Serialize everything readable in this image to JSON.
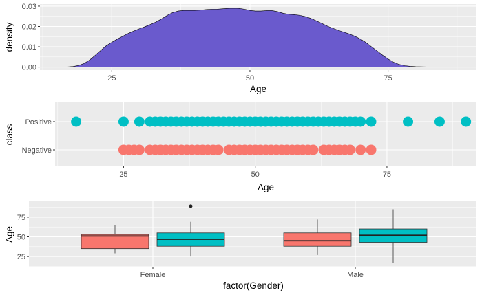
{
  "colors": {
    "panel_bg": "#ebebeb",
    "grid_major": "#ffffff",
    "density_fill": "#6a5acd",
    "negative": "#f8766d",
    "positive": "#00bfc4"
  },
  "chart_data": [
    {
      "type": "area",
      "xlabel": "Age",
      "ylabel": "density",
      "xlim": [
        12,
        91
      ],
      "ylim": [
        -0.0015,
        0.031
      ],
      "x_ticks": [
        25,
        50,
        75
      ],
      "y_ticks": [
        "0.00",
        "0.01",
        "0.02",
        "0.03"
      ],
      "x": [
        16,
        17,
        18,
        19,
        20,
        21,
        22,
        23,
        24,
        25,
        26,
        27,
        28,
        29,
        30,
        31,
        32,
        33,
        34,
        35,
        36,
        37,
        38,
        39,
        40,
        41,
        42,
        43,
        44,
        45,
        46,
        47,
        48,
        49,
        50,
        51,
        52,
        53,
        54,
        55,
        56,
        57,
        58,
        59,
        60,
        61,
        62,
        63,
        64,
        65,
        66,
        67,
        68,
        69,
        70,
        71,
        72,
        73,
        74,
        75,
        76,
        77,
        78,
        79,
        80,
        82,
        84,
        86,
        88,
        90
      ],
      "y": [
        0.0,
        0.0001,
        0.0003,
        0.0008,
        0.0018,
        0.0035,
        0.0058,
        0.0082,
        0.0105,
        0.0122,
        0.0138,
        0.0152,
        0.0166,
        0.0178,
        0.0189,
        0.0199,
        0.021,
        0.0222,
        0.0237,
        0.0254,
        0.0268,
        0.0276,
        0.0279,
        0.0279,
        0.0279,
        0.028,
        0.0283,
        0.0285,
        0.0285,
        0.0287,
        0.0289,
        0.029,
        0.0289,
        0.0285,
        0.0279,
        0.0276,
        0.0276,
        0.0278,
        0.0278,
        0.0273,
        0.0265,
        0.026,
        0.0258,
        0.0255,
        0.0249,
        0.024,
        0.0228,
        0.0215,
        0.0202,
        0.0191,
        0.0181,
        0.0172,
        0.0163,
        0.0152,
        0.0138,
        0.0121,
        0.01,
        0.008,
        0.0059,
        0.004,
        0.0024,
        0.0013,
        0.0007,
        0.0004,
        0.0002,
        0.0001,
        0.0001,
        0.0,
        0.0,
        0.0
      ]
    },
    {
      "type": "scatter",
      "xlabel": "Age",
      "ylabel": "class",
      "xlim": [
        12,
        92
      ],
      "x_ticks": [
        25,
        50,
        75
      ],
      "categories": [
        "Negative",
        "Positive"
      ],
      "series": [
        {
          "category": "Positive",
          "color": "#00bfc4",
          "x": [
            16,
            25,
            28,
            30,
            31,
            32,
            33,
            34,
            35,
            36,
            37,
            38,
            39,
            40,
            41,
            42,
            43,
            44,
            45,
            46,
            47,
            48,
            49,
            50,
            51,
            52,
            53,
            54,
            55,
            56,
            57,
            58,
            59,
            60,
            61,
            62,
            63,
            64,
            65,
            66,
            67,
            68,
            69,
            70,
            72,
            79,
            85,
            90
          ]
        },
        {
          "category": "Negative",
          "color": "#f8766d",
          "x": [
            25,
            26,
            27,
            28,
            30,
            31,
            32,
            33,
            34,
            35,
            36,
            37,
            38,
            39,
            40,
            41,
            42,
            43,
            45,
            46,
            47,
            48,
            49,
            50,
            51,
            52,
            53,
            54,
            55,
            56,
            57,
            58,
            59,
            60,
            61,
            63,
            64,
            65,
            66,
            67,
            68,
            70,
            72
          ]
        }
      ]
    },
    {
      "type": "box",
      "xlabel": "factor(Gender)",
      "ylabel": "Age",
      "ylim": [
        12,
        95
      ],
      "y_ticks": [
        25,
        50,
        75
      ],
      "categories": [
        "Female",
        "Male"
      ],
      "groups": [
        {
          "category": "Female",
          "class": "Negative",
          "color": "#f8766d",
          "whisker_low": 29,
          "q1": 35,
          "median": 51,
          "q3": 53,
          "whisker_high": 65,
          "outliers": []
        },
        {
          "category": "Female",
          "class": "Positive",
          "color": "#00bfc4",
          "whisker_low": 25,
          "q1": 38,
          "median": 47,
          "q3": 55,
          "whisker_high": 69,
          "outliers": [
            89
          ]
        },
        {
          "category": "Male",
          "class": "Negative",
          "color": "#f8766d",
          "whisker_low": 27,
          "q1": 38,
          "median": 45,
          "q3": 55,
          "whisker_high": 72,
          "outliers": []
        },
        {
          "category": "Male",
          "class": "Positive",
          "color": "#00bfc4",
          "whisker_low": 17,
          "q1": 43,
          "median": 52,
          "q3": 60,
          "whisker_high": 85,
          "outliers": []
        }
      ]
    }
  ]
}
